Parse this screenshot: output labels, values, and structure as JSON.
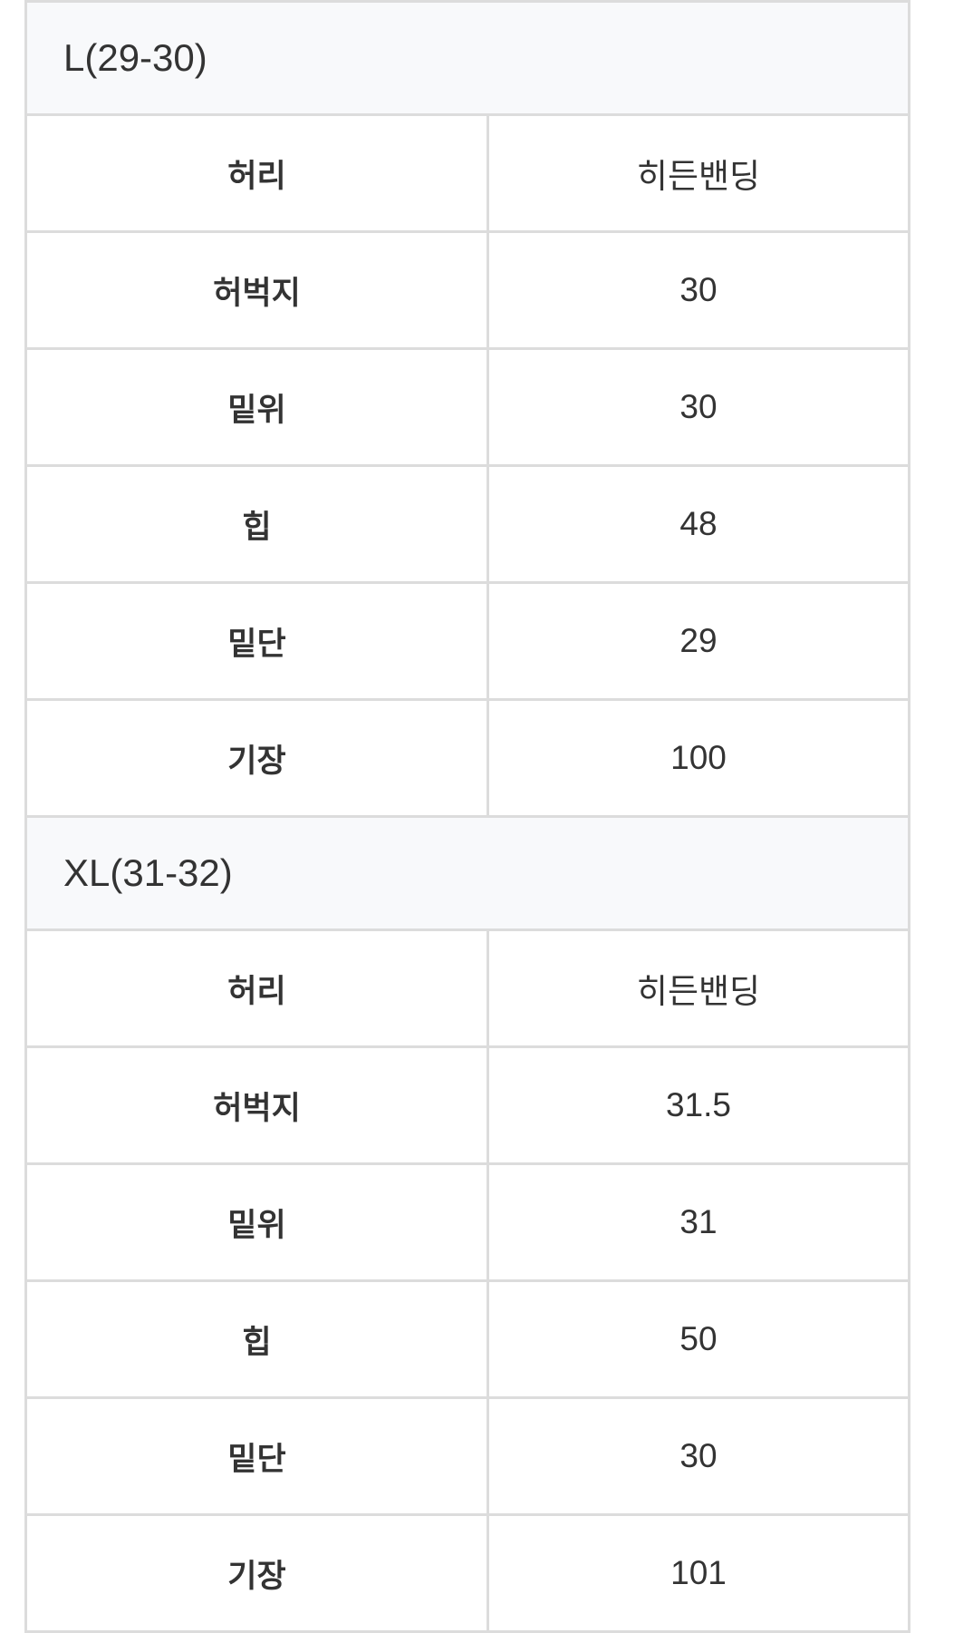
{
  "sections": [
    {
      "title": "L(29-30)",
      "rows": [
        {
          "label": "허리",
          "value": "히든밴딩"
        },
        {
          "label": "허벅지",
          "value": "30"
        },
        {
          "label": "밑위",
          "value": "30"
        },
        {
          "label": "힙",
          "value": "48"
        },
        {
          "label": "밑단",
          "value": "29"
        },
        {
          "label": "기장",
          "value": "100"
        }
      ]
    },
    {
      "title": "XL(31-32)",
      "rows": [
        {
          "label": "허리",
          "value": "히든밴딩"
        },
        {
          "label": "허벅지",
          "value": "31.5"
        },
        {
          "label": "밑위",
          "value": "31"
        },
        {
          "label": "힙",
          "value": "50"
        },
        {
          "label": "밑단",
          "value": "30"
        },
        {
          "label": "기장",
          "value": "101"
        }
      ]
    }
  ]
}
